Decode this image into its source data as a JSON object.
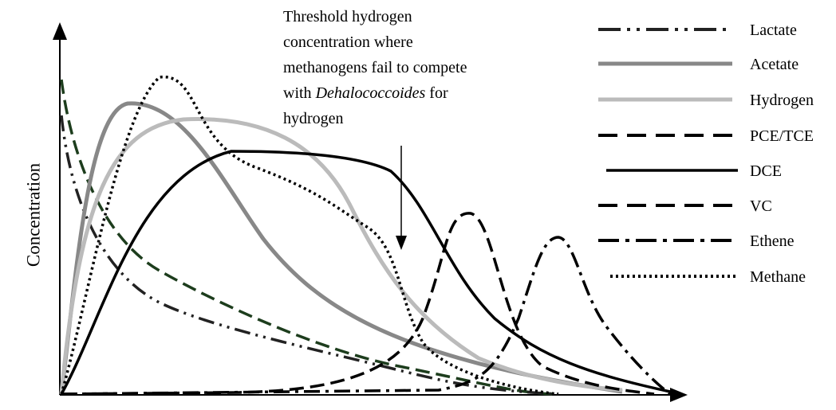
{
  "y_axis_label": "Concentration",
  "annotation": {
    "lines": [
      "Threshold hydrogen",
      "concentration where",
      "methanogens fail to compete",
      "with ",
      "hydrogen"
    ],
    "italic": "Dehalococcoides",
    "after_italic": " for"
  },
  "legend": [
    "Lactate",
    "Acetate",
    "Hydrogen",
    "PCE/TCE",
    "DCE",
    "VC",
    "Ethene",
    "Methane"
  ]
}
